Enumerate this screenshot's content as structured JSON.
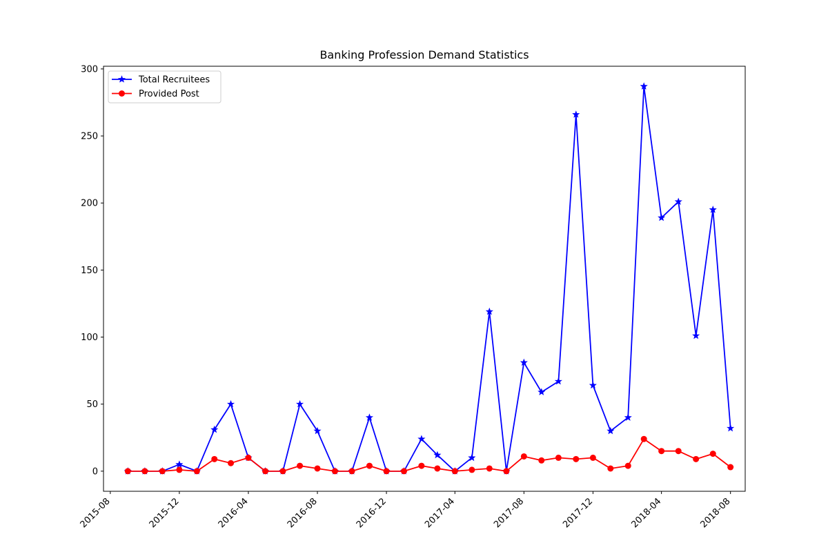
{
  "chart_data": {
    "type": "line",
    "title": "Banking Profession Demand Statistics",
    "xlabel": "",
    "ylabel": "",
    "x": [
      "2015-09",
      "2015-10",
      "2015-11",
      "2015-12",
      "2016-01",
      "2016-02",
      "2016-03",
      "2016-04",
      "2016-05",
      "2016-06",
      "2016-07",
      "2016-08",
      "2016-09",
      "2016-10",
      "2016-11",
      "2016-12",
      "2017-01",
      "2017-02",
      "2017-03",
      "2017-04",
      "2017-05",
      "2017-06",
      "2017-07",
      "2017-08",
      "2017-09",
      "2017-10",
      "2017-11",
      "2017-12",
      "2018-01",
      "2018-02",
      "2018-03",
      "2018-04",
      "2018-05",
      "2018-06",
      "2018-07",
      "2018-08"
    ],
    "series": [
      {
        "name": "Total Recruitees",
        "color": "#0000ff",
        "marker": "star",
        "values": [
          0,
          0,
          0,
          5,
          0,
          31,
          50,
          10,
          0,
          0,
          50,
          30,
          0,
          0,
          40,
          0,
          0,
          24,
          12,
          0,
          10,
          119,
          0,
          81,
          59,
          67,
          266,
          64,
          30,
          40,
          287,
          189,
          201,
          101,
          195,
          32
        ]
      },
      {
        "name": "Provided Post",
        "color": "#ff0000",
        "marker": "circle",
        "values": [
          0,
          0,
          0,
          1,
          0,
          9,
          6,
          10,
          0,
          0,
          4,
          2,
          0,
          0,
          4,
          0,
          0,
          4,
          2,
          0,
          1,
          2,
          0,
          11,
          8,
          10,
          9,
          10,
          2,
          4,
          24,
          15,
          15,
          9,
          13,
          3
        ]
      }
    ],
    "x_ticks": [
      "2015-08",
      "2015-12",
      "2016-04",
      "2016-08",
      "2016-12",
      "2017-04",
      "2017-08",
      "2017-12",
      "2018-04",
      "2018-08"
    ],
    "y_ticks": [
      0,
      50,
      100,
      150,
      200,
      250,
      300
    ],
    "ylim": [
      -15,
      302
    ],
    "xlim": [
      "2015-07-20",
      "2018-08-27"
    ],
    "grid": false,
    "legend_position": "top-left"
  }
}
